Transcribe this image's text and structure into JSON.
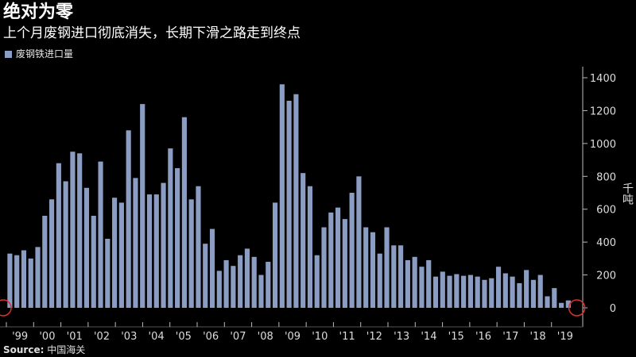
{
  "title": "绝对为零",
  "subtitle": "上个月废钢进口彻底消失，长期下滑之路走到终点",
  "source_label": "Source:",
  "source_text": "中国海关",
  "colors": {
    "background": "#000000",
    "bar": "#8b9dc3",
    "marker": "#e03030",
    "axis": "#bbbbbb"
  },
  "chart_data": {
    "type": "bar",
    "title": "绝对为零",
    "legend": [
      "废钢铁进口量"
    ],
    "legend_position": "top-left",
    "ylabel": "千吨",
    "ylim": [
      0,
      1400
    ],
    "yticks": [
      0,
      200,
      400,
      600,
      800,
      1000,
      1200,
      1400
    ],
    "x_ticks": [
      "'99",
      "'00",
      "'01",
      "'02",
      "'03",
      "'04",
      "'05",
      "'06",
      "'07",
      "'08",
      "'09",
      "'10",
      "'11",
      "'12",
      "'13",
      "'14",
      "'15",
      "'16",
      "'17",
      "'18",
      "'19"
    ],
    "series": [
      {
        "name": "废钢铁进口量",
        "values": [
          330,
          320,
          350,
          300,
          370,
          560,
          660,
          880,
          770,
          950,
          940,
          730,
          560,
          890,
          420,
          670,
          640,
          1080,
          790,
          1240,
          690,
          690,
          760,
          970,
          850,
          1160,
          660,
          740,
          390,
          480,
          225,
          290,
          255,
          320,
          360,
          310,
          200,
          280,
          640,
          1360,
          1260,
          1300,
          820,
          740,
          320,
          490,
          580,
          610,
          540,
          700,
          800,
          490,
          460,
          330,
          490,
          380,
          380,
          290,
          310,
          250,
          290,
          190,
          220,
          195,
          205,
          195,
          200,
          190,
          170,
          180,
          250,
          210,
          190,
          150,
          230,
          170,
          200,
          70,
          120,
          30,
          45,
          0
        ]
      }
    ],
    "annotations": [
      {
        "type": "circle",
        "label": "start-marker",
        "x_index": 0,
        "y": 0
      },
      {
        "type": "circle",
        "label": "zero-marker",
        "x_index": 81,
        "y": 0
      }
    ],
    "grid": false
  }
}
